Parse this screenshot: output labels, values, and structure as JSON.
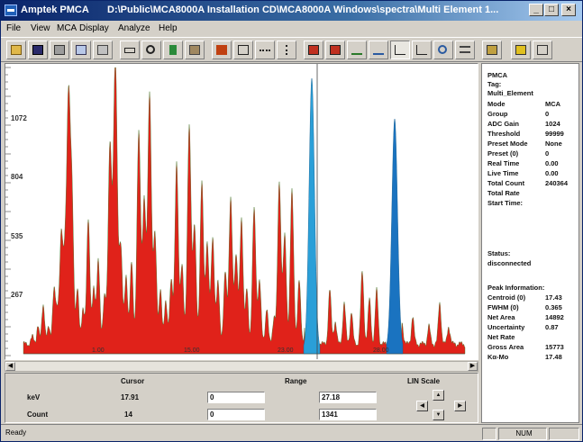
{
  "window": {
    "app_title": "Amptek PMCA",
    "path": "D:\\Public\\MCA8000A Installation CD\\MCA8000A Windows\\spectra\\Multi Element 1...",
    "buttons": [
      "_",
      "□",
      "×"
    ]
  },
  "menu": [
    "File",
    "View",
    "MCA",
    "Display",
    "Analyze",
    "Help"
  ],
  "toolbar_icons": [
    "open-icon",
    "save-icon",
    "print-icon",
    "copy-icon",
    "calibrate-icon",
    "marker-icon",
    "zoom-icon",
    "delete-icon",
    "acquire-icon",
    "stop-icon",
    "clear-icon",
    "expand-horizontal-icon",
    "expand-vertical-icon",
    "roi-icon",
    "region-icon",
    "peak-icon",
    "compare-icon",
    "log-scale-icon",
    "linear-scale-icon",
    "zoom-region-icon",
    "fit-icon",
    "report-icon",
    "help-icon",
    "context-help-icon"
  ],
  "plot": {
    "y_ticks": [
      "1072",
      "804",
      "535",
      "267"
    ],
    "marker_labels": [
      "1.00",
      "15.00",
      "23.00",
      "28.00"
    ]
  },
  "colors": {
    "spectrum": "#e0221a",
    "roi": "#2a9fd8",
    "roi_dark": "#1a73c0",
    "edge": "#3c7a2a"
  },
  "side_panel": {
    "header": [
      "PMCA",
      "Tag:",
      "Multi_Element"
    ],
    "rows": [
      {
        "label": "Mode",
        "value": "MCA"
      },
      {
        "label": "Group",
        "value": "0"
      },
      {
        "label": "ADC Gain",
        "value": "1024"
      },
      {
        "label": "Threshold",
        "value": "99999"
      },
      {
        "label": "Preset Mode",
        "value": "None"
      },
      {
        "label": "Preset (0)",
        "value": "0"
      },
      {
        "label": "Real Time",
        "value": "0.00"
      },
      {
        "label": "Live Time",
        "value": "0.00"
      },
      {
        "label": "Total Count",
        "value": "240364"
      },
      {
        "label": "Total Rate",
        "value": ""
      },
      {
        "label": "Start Time:",
        "value": ""
      }
    ],
    "status_label": "Status:",
    "status_value": "disconnected",
    "peak_title": "Peak Information:",
    "peak_rows": [
      {
        "label": "Centroid (0)",
        "value": "17.43"
      },
      {
        "label": "FWHM (0)",
        "value": "0.365"
      },
      {
        "label": "Net Area",
        "value": "14892"
      },
      {
        "label": "Uncertainty",
        "value": "0.87"
      },
      {
        "label": "Net Rate",
        "value": ""
      },
      {
        "label": "Gross Area",
        "value": "15773"
      },
      {
        "label": "Kα-Mo",
        "value": "17.48"
      }
    ]
  },
  "controls": {
    "cursor_label": "Cursor",
    "range_label": "Range",
    "lin_scale_label": "LIN Scale",
    "kev_label": "keV",
    "count_label": "Count",
    "cursor_kev": "17.91",
    "cursor_count": "14",
    "range_kev_min": "0",
    "range_kev_max": "27.18",
    "range_count_min": "0",
    "range_count_max": "1341"
  },
  "statusbar": {
    "left": "Ready",
    "right": "NUM"
  }
}
